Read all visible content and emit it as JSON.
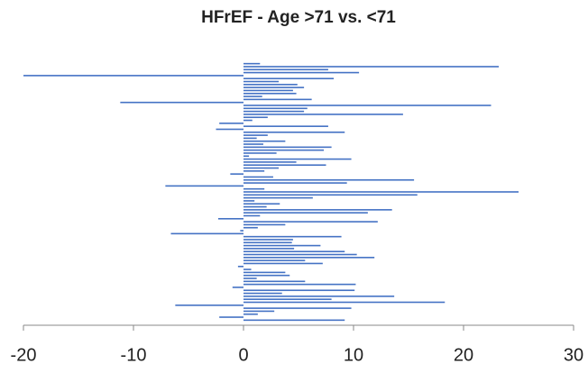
{
  "chart_data": {
    "type": "hbar",
    "title": "HFrEF - Age >71 vs. <71",
    "color": "#4472c4",
    "values": [
      1.5,
      23.2,
      7.7,
      10.5,
      -20,
      8.2,
      3.2,
      4.9,
      5.5,
      4.5,
      4.8,
      1.7,
      6.2,
      -11.2,
      22.5,
      5.8,
      5.5,
      14.5,
      2.2,
      0.8,
      -2.2,
      7.7,
      -2.5,
      9.2,
      2.2,
      1.2,
      3.8,
      1.8,
      8,
      7.3,
      3,
      0.5,
      9.8,
      4.8,
      7.5,
      3.2,
      1.9,
      -1.2,
      2.7,
      15.5,
      9.4,
      -7.1,
      1.9,
      25,
      15.8,
      6.3,
      1,
      3.3,
      2.1,
      13.5,
      11.3,
      1.5,
      -2.3,
      12.2,
      3.8,
      1.3,
      -0.3,
      -6.6,
      8.9,
      4.5,
      4.4,
      7,
      4.6,
      9.2,
      10.3,
      11.9,
      5.6,
      7.2,
      -0.5,
      0.7,
      3.8,
      4.2,
      1.2,
      5.6,
      10.2,
      -1,
      10.1,
      3.5,
      13.7,
      8,
      18.3,
      -6.2,
      9.8,
      2.8,
      1.3,
      -2.2,
      9.2
    ],
    "xlim": [
      -20,
      30
    ],
    "xticks": [
      -20,
      -10,
      0,
      10,
      20,
      30
    ]
  }
}
